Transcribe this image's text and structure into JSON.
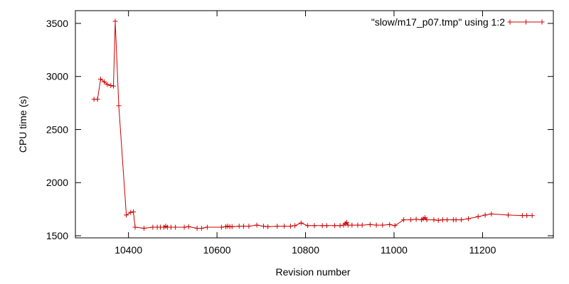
{
  "chart_data": {
    "type": "line",
    "xlabel": "Revision number",
    "ylabel": "CPU time (s)",
    "xlim": [
      10280,
      11360
    ],
    "ylim": [
      1480,
      3620
    ],
    "x_ticks": [
      10400,
      10600,
      10800,
      11000,
      11200
    ],
    "y_ticks": [
      1500,
      2000,
      2500,
      3000,
      3500
    ],
    "grid": false,
    "legend_position": "top-right",
    "series": [
      {
        "name": "\"slow/m17_p07.tmp\" using 1:2",
        "color": "#cc0000",
        "marker": "plus",
        "points": [
          [
            10322,
            2785
          ],
          [
            10330,
            2785
          ],
          [
            10337,
            2975
          ],
          [
            10345,
            2950
          ],
          [
            10352,
            2925
          ],
          [
            10360,
            2915
          ],
          [
            10366,
            2910
          ],
          [
            10370,
            3520
          ],
          [
            10378,
            2725
          ],
          [
            10395,
            1695
          ],
          [
            10405,
            1720
          ],
          [
            10411,
            1725
          ],
          [
            10415,
            1580
          ],
          [
            10435,
            1570
          ],
          [
            10455,
            1580
          ],
          [
            10465,
            1580
          ],
          [
            10472,
            1580
          ],
          [
            10480,
            1580
          ],
          [
            10484,
            1590
          ],
          [
            10488,
            1580
          ],
          [
            10496,
            1580
          ],
          [
            10506,
            1580
          ],
          [
            10526,
            1580
          ],
          [
            10536,
            1585
          ],
          [
            10555,
            1570
          ],
          [
            10565,
            1570
          ],
          [
            10578,
            1580
          ],
          [
            10610,
            1580
          ],
          [
            10620,
            1585
          ],
          [
            10624,
            1590
          ],
          [
            10629,
            1585
          ],
          [
            10634,
            1585
          ],
          [
            10650,
            1590
          ],
          [
            10660,
            1590
          ],
          [
            10672,
            1590
          ],
          [
            10690,
            1600
          ],
          [
            10705,
            1590
          ],
          [
            10715,
            1585
          ],
          [
            10736,
            1590
          ],
          [
            10752,
            1590
          ],
          [
            10766,
            1590
          ],
          [
            10776,
            1595
          ],
          [
            10790,
            1620
          ],
          [
            10805,
            1595
          ],
          [
            10820,
            1595
          ],
          [
            10838,
            1595
          ],
          [
            10848,
            1595
          ],
          [
            10866,
            1595
          ],
          [
            10878,
            1595
          ],
          [
            10886,
            1600
          ],
          [
            10890,
            1615
          ],
          [
            10893,
            1625
          ],
          [
            10896,
            1600
          ],
          [
            10905,
            1600
          ],
          [
            10918,
            1600
          ],
          [
            10928,
            1600
          ],
          [
            10946,
            1605
          ],
          [
            10960,
            1600
          ],
          [
            10974,
            1600
          ],
          [
            10990,
            1605
          ],
          [
            11002,
            1595
          ],
          [
            11022,
            1650
          ],
          [
            11038,
            1650
          ],
          [
            11050,
            1655
          ],
          [
            11062,
            1650
          ],
          [
            11066,
            1660
          ],
          [
            11070,
            1670
          ],
          [
            11074,
            1650
          ],
          [
            11090,
            1650
          ],
          [
            11100,
            1645
          ],
          [
            11110,
            1650
          ],
          [
            11120,
            1650
          ],
          [
            11134,
            1650
          ],
          [
            11140,
            1650
          ],
          [
            11152,
            1650
          ],
          [
            11168,
            1660
          ],
          [
            11190,
            1680
          ],
          [
            11206,
            1695
          ],
          [
            11220,
            1705
          ],
          [
            11258,
            1695
          ],
          [
            11290,
            1690
          ],
          [
            11300,
            1690
          ],
          [
            11312,
            1690
          ]
        ]
      }
    ]
  }
}
